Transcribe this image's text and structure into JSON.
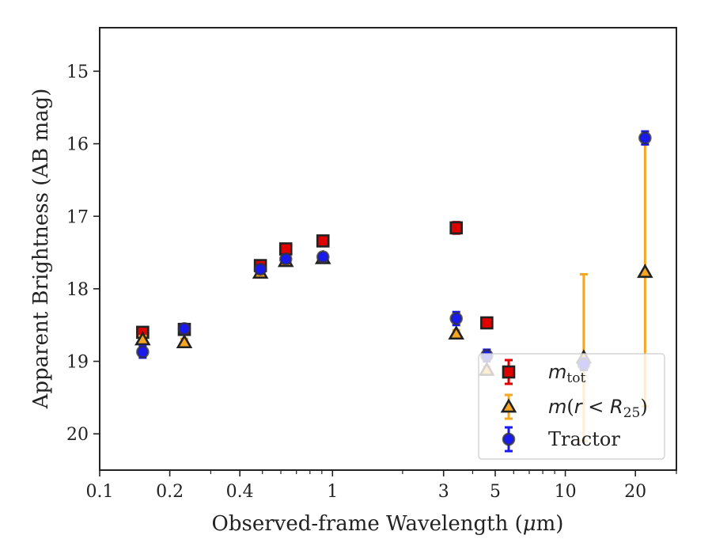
{
  "chart_data": {
    "type": "scatter",
    "xlabel_main": "Observed-frame Wavelength (",
    "xlabel_mu": "μ",
    "xlabel_tail": "m)",
    "ylabel": "Apparent Brightness (AB mag)",
    "x_scale": "log",
    "xlim": [
      0.1,
      30
    ],
    "ylim": [
      20.5,
      14.4
    ],
    "y_inverted": true,
    "x_ticks": [
      {
        "value": 0.1,
        "label": "0.1"
      },
      {
        "value": 0.2,
        "label": "0.2"
      },
      {
        "value": 0.4,
        "label": "0.4"
      },
      {
        "value": 1,
        "label": "1"
      },
      {
        "value": 3,
        "label": "3"
      },
      {
        "value": 5,
        "label": "5"
      },
      {
        "value": 10,
        "label": "10"
      },
      {
        "value": 20,
        "label": "20"
      }
    ],
    "y_ticks": [
      {
        "value": 15,
        "label": "15"
      },
      {
        "value": 16,
        "label": "16"
      },
      {
        "value": 17,
        "label": "17"
      },
      {
        "value": 18,
        "label": "18"
      },
      {
        "value": 19,
        "label": "19"
      },
      {
        "value": 20,
        "label": "20"
      }
    ],
    "grid": false,
    "legend_position": "bottom-right",
    "series": [
      {
        "name": "m_tot",
        "legend_label": {
          "m": "m",
          "sub": "tot",
          "rest": ""
        },
        "marker": "square",
        "color": "#e00000",
        "error_color": "#e00000",
        "points": [
          {
            "x": 0.153,
            "y": 18.6,
            "err": 0.05
          },
          {
            "x": 0.231,
            "y": 18.56,
            "err": 0.05
          },
          {
            "x": 0.49,
            "y": 17.68,
            "err": 0.04
          },
          {
            "x": 0.63,
            "y": 17.45,
            "err": 0.04
          },
          {
            "x": 0.91,
            "y": 17.34,
            "err": 0.04
          },
          {
            "x": 3.4,
            "y": 17.16,
            "err": 0.08
          },
          {
            "x": 4.6,
            "y": 18.47,
            "err": 0.06
          }
        ]
      },
      {
        "name": "m(r < R25)",
        "legend_label": {
          "m": "m",
          "mid": "(",
          "r": "r",
          "lt": " < ",
          "R": "R",
          "sub": "25",
          "rest": ")"
        },
        "marker": "triangle",
        "color": "#f5a623",
        "error_color": "#f5a623",
        "points": [
          {
            "x": 0.153,
            "y": 18.7,
            "err": 0.05
          },
          {
            "x": 0.231,
            "y": 18.74,
            "err": 0.05
          },
          {
            "x": 0.49,
            "y": 17.78,
            "err": 0.04
          },
          {
            "x": 0.63,
            "y": 17.62,
            "err": 0.04
          },
          {
            "x": 0.91,
            "y": 17.58,
            "err": 0.04
          },
          {
            "x": 3.4,
            "y": 18.62,
            "err": 0.05
          },
          {
            "x": 4.6,
            "y": 19.12,
            "err": 0.05
          },
          {
            "x": 12.0,
            "y": 18.95,
            "err": 1.15
          },
          {
            "x": 22.0,
            "y": 17.77,
            "err": 1.85
          }
        ]
      },
      {
        "name": "Tractor",
        "legend_label": {
          "text": "Tractor"
        },
        "marker": "circle",
        "color": "#1a1aee",
        "error_color": "#1a1aee",
        "points": [
          {
            "x": 0.153,
            "y": 18.87,
            "err": 0.08
          },
          {
            "x": 0.231,
            "y": 18.55,
            "err": 0.06
          },
          {
            "x": 0.49,
            "y": 17.73,
            "err": 0.05
          },
          {
            "x": 0.63,
            "y": 17.59,
            "err": 0.05
          },
          {
            "x": 0.91,
            "y": 17.56,
            "err": 0.05
          },
          {
            "x": 3.4,
            "y": 18.41,
            "err": 0.09
          },
          {
            "x": 4.6,
            "y": 18.92,
            "err": 0.08
          },
          {
            "x": 12.0,
            "y": 19.04,
            "err": 0.08
          },
          {
            "x": 22.0,
            "y": 15.92,
            "err": 0.09
          }
        ]
      }
    ]
  }
}
